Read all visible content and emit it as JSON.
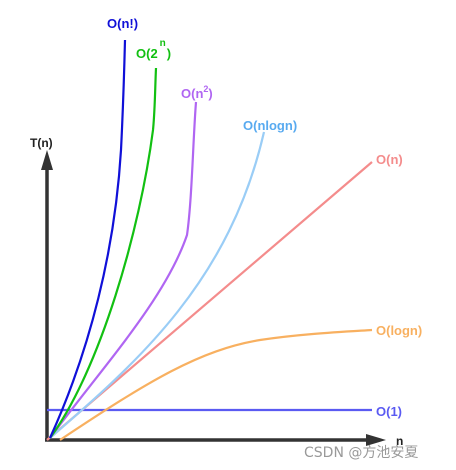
{
  "y_axis_label": "T(n)",
  "x_axis_label": "n",
  "watermark": "CSDN @方池安夏",
  "curves": [
    {
      "id": "factorial",
      "label": "O(n!)",
      "color": "#1010d8"
    },
    {
      "id": "exponential",
      "label_base": "O(2",
      "label_sup": "n",
      "label_end": ")",
      "color": "#12c012"
    },
    {
      "id": "quadratic",
      "label_base": "O(n",
      "label_sup": "2",
      "label_end": ")",
      "color": "#b066f2"
    },
    {
      "id": "nlogn",
      "label": "O(nlogn)",
      "color": "#58aaf0"
    },
    {
      "id": "linear",
      "label": "O(n)",
      "color": "#f48c8c"
    },
    {
      "id": "logn",
      "label": "O(logn)",
      "color": "#f8b060"
    },
    {
      "id": "constant",
      "label": "O(1)",
      "color": "#5a5af2"
    }
  ]
}
